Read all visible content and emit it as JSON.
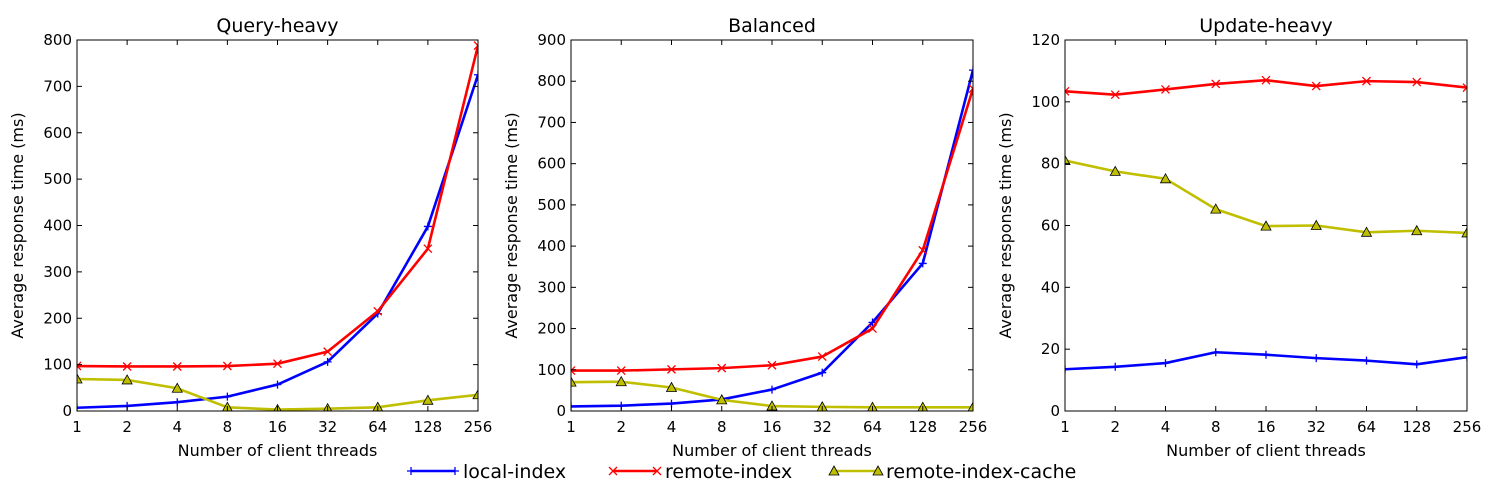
{
  "chart_data": [
    {
      "type": "line",
      "title": "Query-heavy",
      "xlabel": "Number of client threads",
      "ylabel": "Average response time (ms)",
      "x_scale": "log2",
      "x": [
        1,
        2,
        4,
        8,
        16,
        32,
        64,
        128,
        256
      ],
      "xticks": [
        "1",
        "2",
        "4",
        "8",
        "16",
        "32",
        "64",
        "128",
        "256"
      ],
      "ylim": [
        0,
        800
      ],
      "yticks": [
        0,
        100,
        200,
        300,
        400,
        500,
        600,
        700,
        800
      ],
      "series": [
        {
          "name": "local-index",
          "color": "#0000ff",
          "marker": "plus",
          "values": [
            7,
            11,
            19,
            31,
            57,
            106,
            210,
            398,
            725
          ]
        },
        {
          "name": "remote-index",
          "color": "#ff0000",
          "marker": "x",
          "values": [
            97,
            96,
            96,
            97,
            102,
            128,
            215,
            350,
            788
          ]
        },
        {
          "name": "remote-index-cache",
          "color": "#bfbf00",
          "marker": "triangle",
          "values": [
            69,
            67,
            49,
            8,
            3,
            5,
            8,
            23,
            35
          ]
        }
      ]
    },
    {
      "type": "line",
      "title": "Balanced",
      "xlabel": "Number of client threads",
      "ylabel": "Average response time (ms)",
      "x_scale": "log2",
      "x": [
        1,
        2,
        4,
        8,
        16,
        32,
        64,
        128,
        256
      ],
      "xticks": [
        "1",
        "2",
        "4",
        "8",
        "16",
        "32",
        "64",
        "128",
        "256"
      ],
      "ylim": [
        0,
        900
      ],
      "yticks": [
        0,
        100,
        200,
        300,
        400,
        500,
        600,
        700,
        800,
        900
      ],
      "series": [
        {
          "name": "local-index",
          "color": "#0000ff",
          "marker": "plus",
          "values": [
            11,
            13,
            18,
            28,
            52,
            93,
            215,
            358,
            827
          ]
        },
        {
          "name": "remote-index",
          "color": "#ff0000",
          "marker": "x",
          "values": [
            98,
            98,
            101,
            104,
            111,
            132,
            200,
            390,
            782
          ]
        },
        {
          "name": "remote-index-cache",
          "color": "#bfbf00",
          "marker": "triangle",
          "values": [
            70,
            71,
            57,
            27,
            12,
            10,
            9,
            9,
            9
          ]
        }
      ]
    },
    {
      "type": "line",
      "title": "Update-heavy",
      "xlabel": "Number of client threads",
      "ylabel": "Average response time (ms)",
      "x_scale": "log2",
      "x": [
        1,
        2,
        4,
        8,
        16,
        32,
        64,
        128,
        256
      ],
      "xticks": [
        "1",
        "2",
        "4",
        "8",
        "16",
        "32",
        "64",
        "128",
        "256"
      ],
      "ylim": [
        0,
        120
      ],
      "yticks": [
        0,
        20,
        40,
        60,
        80,
        100,
        120
      ],
      "series": [
        {
          "name": "local-index",
          "color": "#0000ff",
          "marker": "plus",
          "values": [
            13.5,
            14.3,
            15.5,
            19.0,
            18.2,
            17.1,
            16.3,
            15.1,
            17.4
          ]
        },
        {
          "name": "remote-index",
          "color": "#ff0000",
          "marker": "x",
          "values": [
            103.4,
            102.3,
            104.0,
            105.8,
            107.0,
            105.1,
            106.7,
            106.4,
            104.6
          ]
        },
        {
          "name": "remote-index-cache",
          "color": "#bfbf00",
          "marker": "triangle",
          "values": [
            81.0,
            77.5,
            75.1,
            65.3,
            59.8,
            60.0,
            57.8,
            58.3,
            57.6
          ]
        }
      ]
    }
  ],
  "legend": {
    "placement": "bottom-center",
    "items": [
      {
        "label": "local-index",
        "color": "#0000ff",
        "marker": "plus"
      },
      {
        "label": "remote-index",
        "color": "#ff0000",
        "marker": "x"
      },
      {
        "label": "remote-index-cache",
        "color": "#bfbf00",
        "marker": "triangle"
      }
    ]
  }
}
